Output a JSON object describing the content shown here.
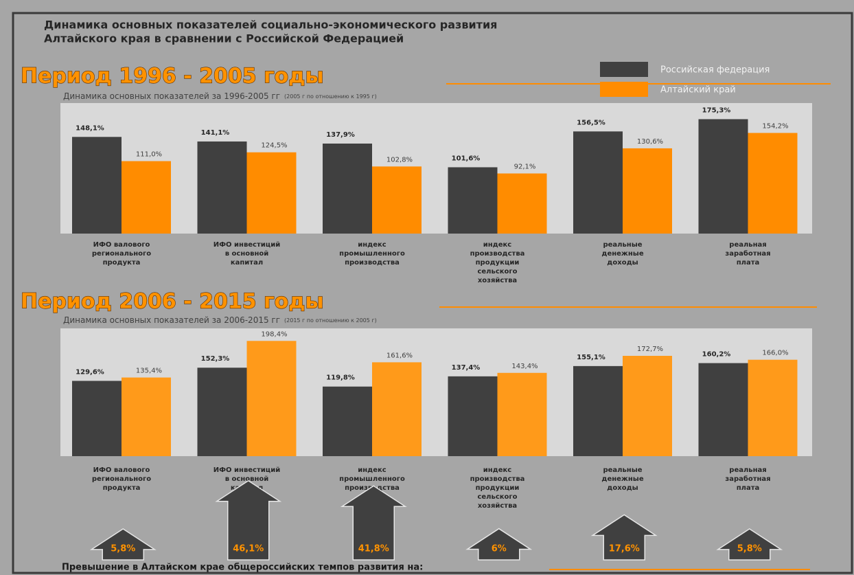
{
  "header": {
    "title": [
      "Динамика основных показателей социально-экономического развития",
      "Алтайского края в сравнении с Российской Федерацией"
    ]
  },
  "chart_data": [
    {
      "type": "bar",
      "heading": "Период  1996 - 2005 годы",
      "title": "Динамика основных показателей за 1996-2005  гг",
      "subtitle": "(2005 г по отношению к 1995 г)",
      "categories": [
        [
          "ИФО валового",
          "регионального",
          "продукта"
        ],
        [
          "ИФО инвестиций",
          "в основной",
          "капитал"
        ],
        [
          "индекс",
          "промышленного",
          "производства"
        ],
        [
          "индекс",
          "производства",
          "продукции",
          "сельского",
          "хозяйства"
        ],
        [
          "реальные",
          "денежные",
          "доходы"
        ],
        [
          "реальная",
          "заработная",
          "плата"
        ]
      ],
      "series": [
        {
          "name": "Российская федерация",
          "color": "#404040",
          "values": [
            148.1,
            141.1,
            137.9,
            101.6,
            156.5,
            175.3
          ],
          "value_labels": [
            "148,1%",
            "141,1%",
            "137,9%",
            "101,6%",
            "156,5%",
            "175,3%"
          ]
        },
        {
          "name": "Алтайский край",
          "color": "#ff8c00",
          "values": [
            111.0,
            124.5,
            102.8,
            92.1,
            130.6,
            154.2
          ],
          "value_labels": [
            "111,0%",
            "124,5%",
            "102,8%",
            "92,1%",
            "130,6%",
            "154,2%"
          ]
        }
      ],
      "ylim": [
        0,
        200
      ]
    },
    {
      "type": "bar",
      "heading": "Период  2006 - 2015 годы",
      "title": "Динамика основных показателей за 2006-2015  гг",
      "subtitle": "(2015 г по отношению к 2005 г)",
      "categories": [
        [
          "ИФО валового",
          "регионального",
          "продукта"
        ],
        [
          "ИФО инвестиций",
          "в основной",
          "капитал"
        ],
        [
          "индекс",
          "промышленного",
          "производства"
        ],
        [
          "индекс",
          "производства",
          "продукции",
          "сельского",
          "хозяйства"
        ],
        [
          "реальные",
          "денежные",
          "доходы"
        ],
        [
          "реальная",
          "заработная",
          "плата"
        ]
      ],
      "series": [
        {
          "color": "#404040",
          "values": [
            129.6,
            152.3,
            119.8,
            137.4,
            155.1,
            160.2
          ],
          "value_labels": [
            "129,6%",
            "152,3%",
            "119,8%",
            "137,4%",
            "155,1%",
            "160,2%"
          ]
        },
        {
          "color": "#ff9a1a",
          "values": [
            135.4,
            198.4,
            161.6,
            143.4,
            172.7,
            166.0
          ],
          "value_labels": [
            "135,4%",
            "198,4%",
            "161,6%",
            "143,4%",
            "172,7%",
            "166,0%"
          ]
        }
      ],
      "ylim": [
        0,
        220
      ]
    }
  ],
  "excess": {
    "title": "Превышение в Алтайском крае общероссийских темпов развития на:",
    "values": [
      5.8,
      46.1,
      41.8,
      6,
      17.6,
      5.8
    ],
    "value_labels": [
      "5,8%",
      "46,1%",
      "41,8%",
      "6%",
      "17,6%",
      "5,8%"
    ]
  }
}
